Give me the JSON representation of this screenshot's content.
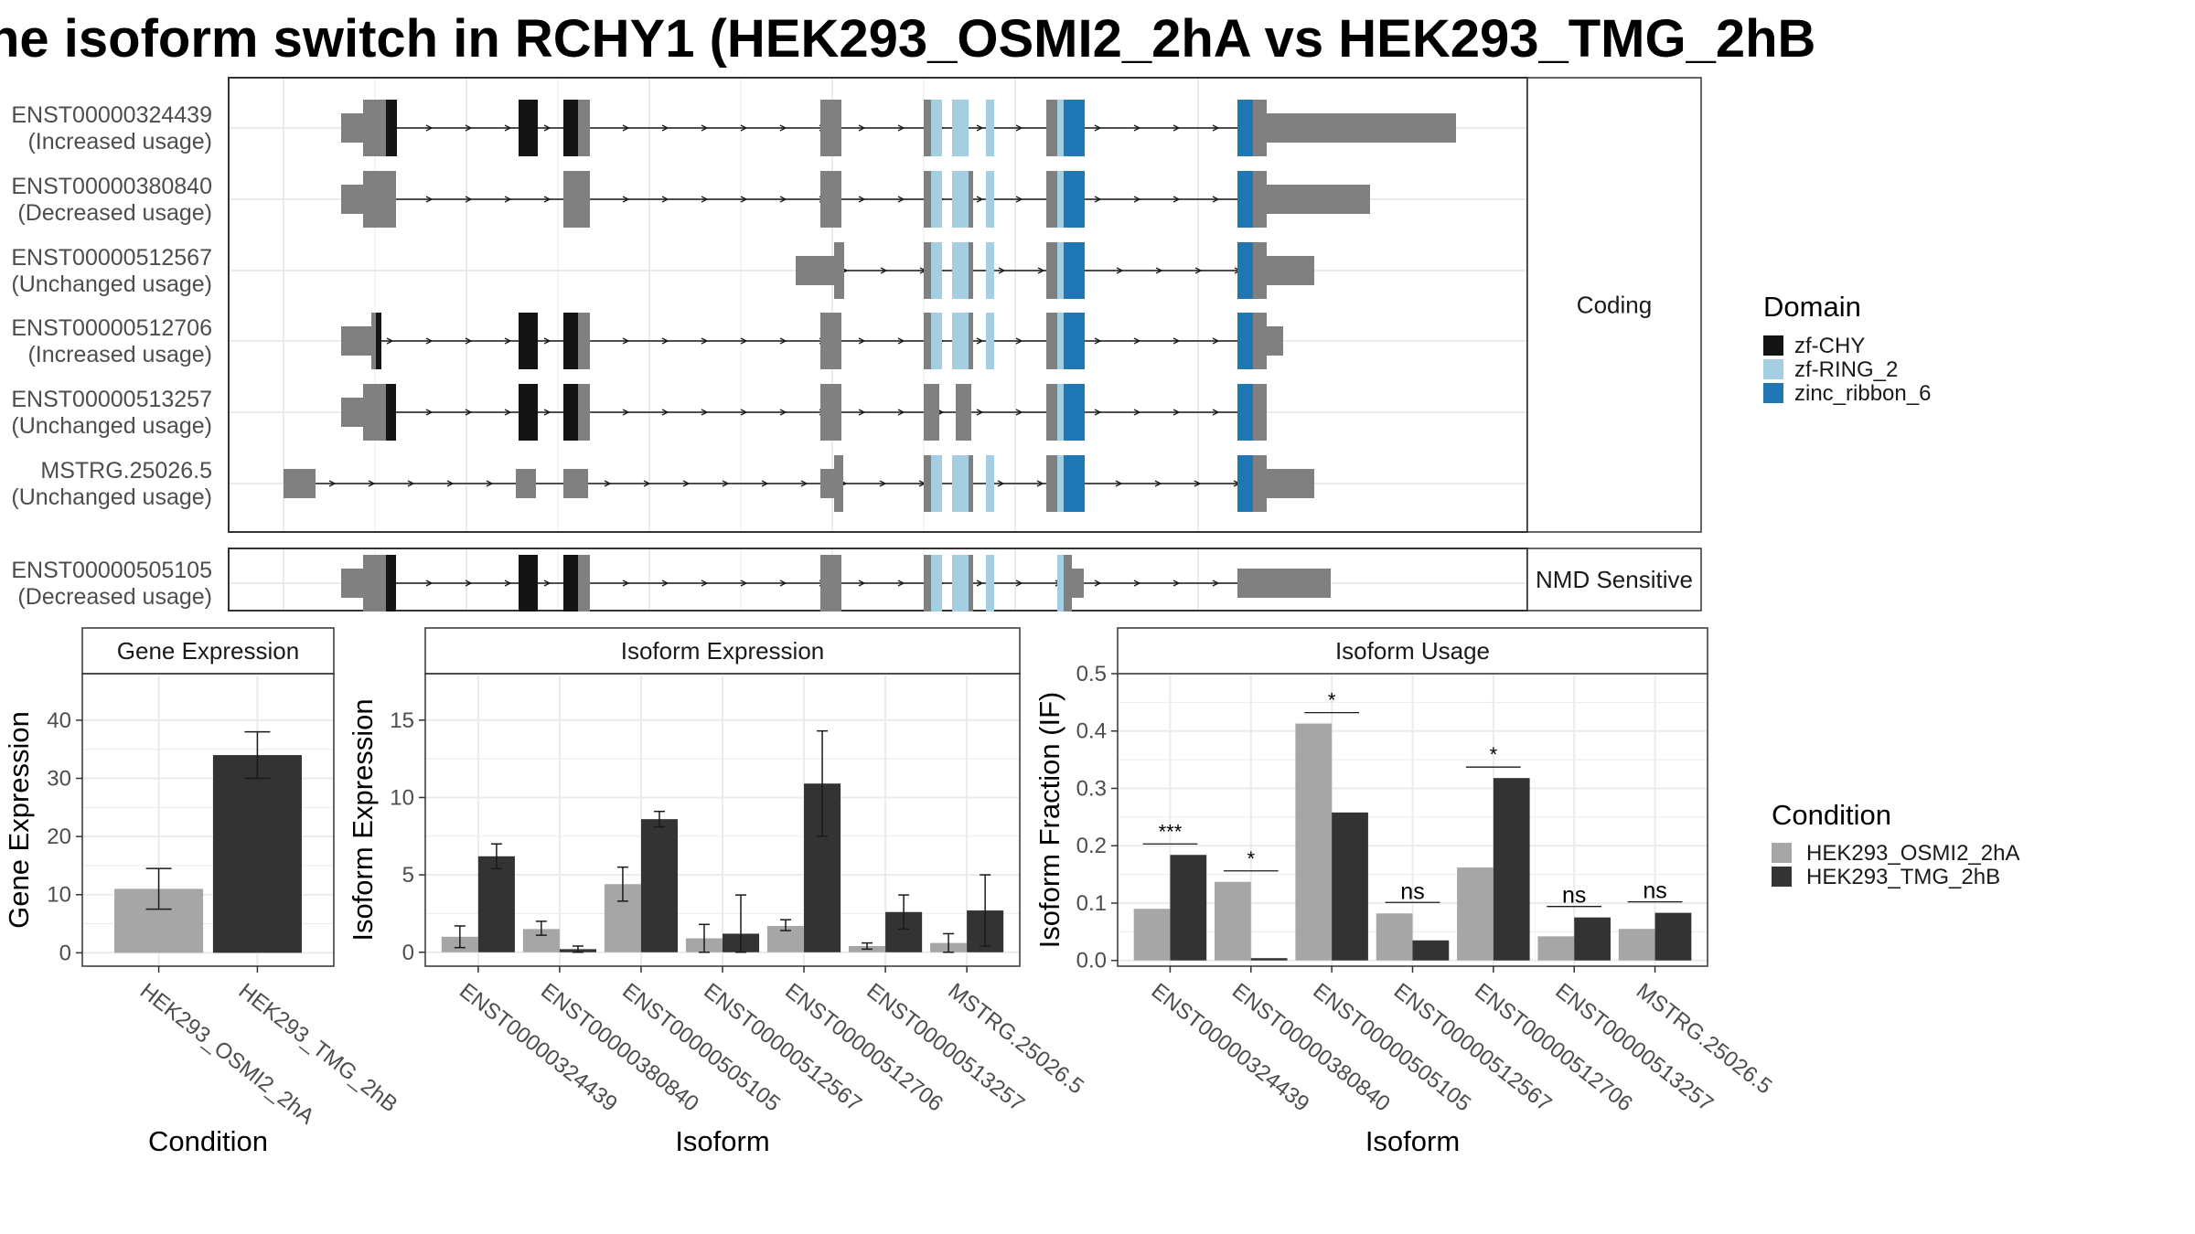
{
  "title": "he isoform switch in RCHY1 (HEK293_OSMI2_2hA vs HEK293_TMG_2hB",
  "colors": {
    "exon": "#808080",
    "zf-CHY": "#141414",
    "zf-RING_2": "#a6cee3",
    "zinc_ribbon_6": "#1f78b4",
    "HEK293_OSMI2_2hA": "#a6a6a6",
    "HEK293_TMG_2hB": "#333333"
  },
  "structure": {
    "sections": [
      "Coding",
      "NMD Sensitive"
    ],
    "transcripts": [
      {
        "id": "ENST00000324439",
        "usage": "(Increased usage)",
        "section": "Coding"
      },
      {
        "id": "ENST00000380840",
        "usage": "(Decreased usage)",
        "section": "Coding"
      },
      {
        "id": "ENST00000512567",
        "usage": "(Unchanged usage)",
        "section": "Coding"
      },
      {
        "id": "ENST00000512706",
        "usage": "(Increased usage)",
        "section": "Coding"
      },
      {
        "id": "ENST00000513257",
        "usage": "(Unchanged usage)",
        "section": "Coding"
      },
      {
        "id": "MSTRG.25026.5",
        "usage": "(Unchanged usage)",
        "section": "Coding"
      },
      {
        "id": "ENST00000505105",
        "usage": "(Decreased usage)",
        "section": "NMD Sensitive"
      }
    ]
  },
  "legend_domain": {
    "title": "Domain",
    "items": [
      {
        "label": "zf-CHY",
        "color": "#141414"
      },
      {
        "label": "zf-RING_2",
        "color": "#a6cee3"
      },
      {
        "label": "zinc_ribbon_6",
        "color": "#1f78b4"
      }
    ]
  },
  "legend_condition": {
    "title": "Condition",
    "items": [
      {
        "label": "HEK293_OSMI2_2hA",
        "color": "#a6a6a6"
      },
      {
        "label": "HEK293_TMG_2hB",
        "color": "#333333"
      }
    ]
  },
  "chart_data": [
    {
      "type": "bar",
      "title": "Gene Expression",
      "xlabel": "Condition",
      "ylabel": "Gene Expression",
      "categories": [
        "HEK293_OSMI2_2hA",
        "HEK293_TMG_2hB"
      ],
      "values": [
        11,
        34
      ],
      "error": [
        [
          7.5,
          14.5
        ],
        [
          30,
          38
        ]
      ],
      "ylim": [
        -2.3,
        48
      ],
      "yticks": [
        0,
        10,
        20,
        30,
        40
      ]
    },
    {
      "type": "bar",
      "title": "Isoform Expression",
      "xlabel": "Isoform",
      "ylabel": "Isoform Expression",
      "categories": [
        "ENST00000324439",
        "ENST00000380840",
        "ENST00000505105",
        "ENST00000512567",
        "ENST00000512706",
        "ENST00000513257",
        "MSTRG.25026.5"
      ],
      "series": [
        {
          "name": "HEK293_OSMI2_2hA",
          "values": [
            1.0,
            1.5,
            4.4,
            0.9,
            1.7,
            0.4,
            0.6
          ],
          "error": [
            [
              0.3,
              1.7
            ],
            [
              1.1,
              2.0
            ],
            [
              3.3,
              5.5
            ],
            [
              0.0,
              1.8
            ],
            [
              1.4,
              2.1
            ],
            [
              0.2,
              0.6
            ],
            [
              0.0,
              1.2
            ]
          ]
        },
        {
          "name": "HEK293_TMG_2hB",
          "values": [
            6.2,
            0.2,
            8.6,
            1.2,
            10.9,
            2.6,
            2.7
          ],
          "error": [
            [
              5.4,
              7.0
            ],
            [
              0.0,
              0.4
            ],
            [
              8.1,
              9.1
            ],
            [
              0.0,
              3.7
            ],
            [
              7.5,
              14.3
            ],
            [
              1.5,
              3.7
            ],
            [
              0.4,
              5.0
            ]
          ]
        }
      ],
      "ylim": [
        -0.9,
        18
      ],
      "yticks": [
        0,
        5,
        10,
        15
      ]
    },
    {
      "type": "bar",
      "title": "Isoform Usage",
      "xlabel": "Isoform",
      "ylabel": "Isoform Fraction (IF)",
      "categories": [
        "ENST00000324439",
        "ENST00000380840",
        "ENST00000505105",
        "ENST00000512567",
        "ENST00000512706",
        "ENST00000513257",
        "MSTRG.25026.5"
      ],
      "series": [
        {
          "name": "HEK293_OSMI2_2hA",
          "values": [
            0.09,
            0.137,
            0.413,
            0.082,
            0.162,
            0.042,
            0.055
          ]
        },
        {
          "name": "HEK293_TMG_2hB",
          "values": [
            0.184,
            0.004,
            0.258,
            0.035,
            0.318,
            0.075,
            0.083
          ]
        }
      ],
      "significance": [
        "***",
        "*",
        "*",
        "ns",
        "*",
        "ns",
        "ns"
      ],
      "ylim": [
        -0.01,
        0.5
      ],
      "yticks": [
        0.0,
        0.1,
        0.2,
        0.3,
        0.4,
        0.5
      ],
      "ytick_labels": [
        "0.0",
        "0.1",
        "0.2",
        "0.3",
        "0.4",
        "0.5"
      ]
    }
  ]
}
